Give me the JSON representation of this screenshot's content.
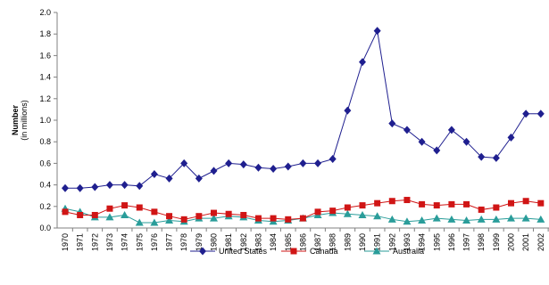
{
  "chart_data": {
    "type": "line",
    "title": "",
    "ylabel": "Number",
    "ylabel_sub": "(in millions)",
    "xlabel": "",
    "ylim": [
      0,
      2.0
    ],
    "yticks": [
      "0.0",
      "0.2",
      "0.4",
      "0.6",
      "0.8",
      "1.0",
      "1.2",
      "1.4",
      "1.6",
      "1.8",
      "2.0"
    ],
    "grid": false,
    "legend_position": "bottom",
    "x": [
      "1970",
      "1971",
      "1972",
      "1973",
      "1974",
      "1975",
      "1976",
      "1977",
      "1978",
      "1979",
      "1980",
      "1981",
      "1982",
      "1983",
      "1984",
      "1985",
      "1986",
      "1987",
      "1988",
      "1989",
      "1990",
      "1991",
      "1992",
      "1993",
      "1994",
      "1995",
      "1996",
      "1997",
      "1998",
      "1999",
      "2000",
      "2001",
      "2002"
    ],
    "series": [
      {
        "name": "United States",
        "color": "#1f1f8f",
        "marker": "diamond",
        "values": [
          0.37,
          0.37,
          0.38,
          0.4,
          0.4,
          0.39,
          0.5,
          0.46,
          0.6,
          0.46,
          0.53,
          0.6,
          0.59,
          0.56,
          0.55,
          0.57,
          0.6,
          0.6,
          0.64,
          1.09,
          1.54,
          1.83,
          0.97,
          0.91,
          0.8,
          0.72,
          0.91,
          0.8,
          0.66,
          0.65,
          0.84,
          1.06,
          1.06
        ]
      },
      {
        "name": "Canada",
        "color": "#d01515",
        "marker": "square",
        "values": [
          0.15,
          0.12,
          0.12,
          0.18,
          0.21,
          0.19,
          0.15,
          0.11,
          0.08,
          0.11,
          0.14,
          0.13,
          0.12,
          0.09,
          0.09,
          0.08,
          0.09,
          0.15,
          0.16,
          0.19,
          0.21,
          0.23,
          0.25,
          0.26,
          0.22,
          0.21,
          0.22,
          0.22,
          0.17,
          0.19,
          0.23,
          0.25,
          0.23
        ]
      },
      {
        "name": "Australia",
        "color": "#2a9d9a",
        "marker": "triangle",
        "values": [
          0.18,
          0.15,
          0.1,
          0.1,
          0.12,
          0.05,
          0.05,
          0.07,
          0.06,
          0.09,
          0.09,
          0.11,
          0.1,
          0.07,
          0.06,
          0.07,
          0.09,
          0.12,
          0.14,
          0.13,
          0.12,
          0.11,
          0.08,
          0.06,
          0.07,
          0.09,
          0.08,
          0.07,
          0.08,
          0.08,
          0.09,
          0.09,
          0.08
        ]
      }
    ]
  }
}
